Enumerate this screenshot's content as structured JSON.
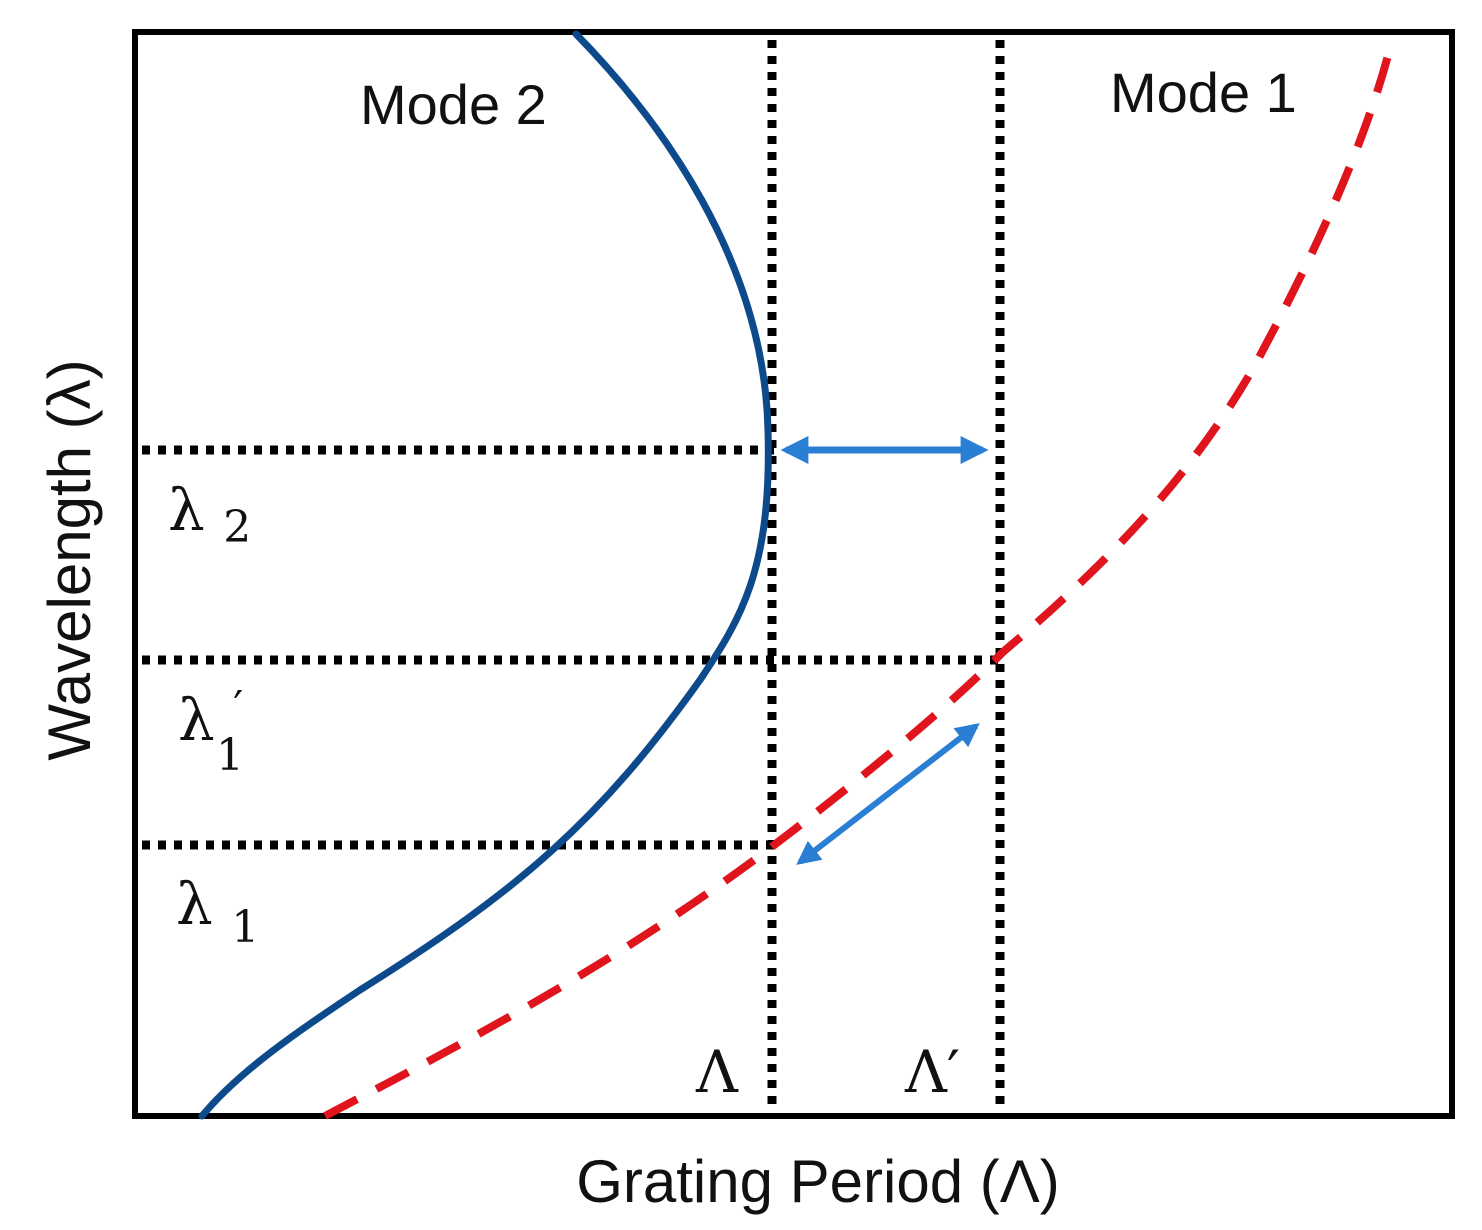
{
  "axes": {
    "x_label": "Grating Period (Λ)",
    "y_label": "Wavelength (λ)"
  },
  "curves": {
    "mode2": {
      "label": "Mode 2",
      "color": "#0d4a8c",
      "style": "solid"
    },
    "mode1": {
      "label": "Mode 1",
      "color": "#e0141c",
      "style": "dashed"
    }
  },
  "markers": {
    "lambda2": {
      "base": "λ",
      "sub": "2",
      "prime": ""
    },
    "lambda1_prime": {
      "base": "λ",
      "sub": "1",
      "prime": "′"
    },
    "lambda1": {
      "base": "λ",
      "sub": "1",
      "prime": ""
    },
    "period": {
      "text": "Λ"
    },
    "period_prime": {
      "text": "Λ′"
    }
  },
  "colors": {
    "guide_lines": "#000000",
    "arrows": "#2a7fd4",
    "frame": "#000000"
  }
}
